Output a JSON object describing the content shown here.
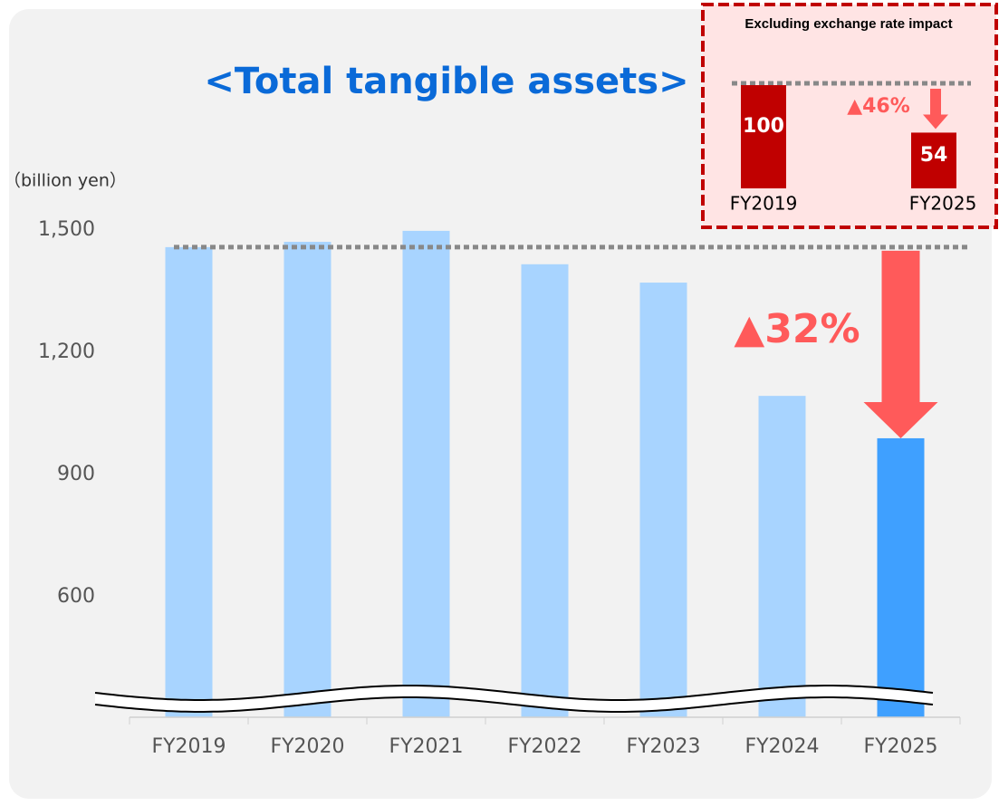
{
  "chart_data": [
    {
      "type": "bar",
      "title": "<Total tangible assets>",
      "y_axis_label": "（billion yen）",
      "categories": [
        "FY2019",
        "FY2020",
        "FY2021",
        "FY2022",
        "FY2023",
        "FY2024",
        "FY2025"
      ],
      "values": [
        1458,
        1471,
        1498,
        1416,
        1371,
        1093,
        989
      ],
      "colors": [
        "#a8d4ff",
        "#a8d4ff",
        "#a8d4ff",
        "#a8d4ff",
        "#a8d4ff",
        "#a8d4ff",
        "#3fa0ff"
      ],
      "ylim": [
        300,
        1500
      ],
      "yticks": [
        {
          "value": 600,
          "label": "600"
        },
        {
          "value": 900,
          "label": "900"
        },
        {
          "value": 1200,
          "label": "1,200"
        },
        {
          "value": 1500,
          "label": "1,500"
        }
      ],
      "annotation": "▲32%"
    },
    {
      "type": "bar",
      "title": "Excluding exchange rate impact",
      "categories": [
        "FY2019",
        "FY2025"
      ],
      "values": [
        100,
        54
      ],
      "color": "#c00000",
      "ylim": [
        0,
        100
      ],
      "annotation": "▲46%"
    }
  ]
}
